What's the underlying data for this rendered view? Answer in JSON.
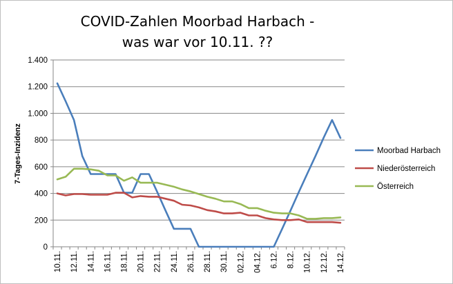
{
  "chart_data": {
    "type": "line",
    "title_lines": [
      "COVID-Zahlen Moorbad Harbach -",
      "was war vor 10.11. ??"
    ],
    "ylabel": "7-Tages-Inzidenz",
    "xlabel": "",
    "ylim": [
      0,
      1400
    ],
    "y_ticks": [
      {
        "value": 0,
        "label": "0"
      },
      {
        "value": 200,
        "label": "200"
      },
      {
        "value": 400,
        "label": "400"
      },
      {
        "value": 600,
        "label": "600"
      },
      {
        "value": 800,
        "label": "800"
      },
      {
        "value": 1000,
        "label": "1.000"
      },
      {
        "value": 1200,
        "label": "1.200"
      },
      {
        "value": 1400,
        "label": "1.400"
      }
    ],
    "x": [
      "10.11.",
      "11.11.",
      "12.11.",
      "13.11.",
      "14.11.",
      "15.11.",
      "16.11.",
      "17.11.",
      "18.11.",
      "19.11.",
      "20.11.",
      "21.11.",
      "22.11.",
      "23.11.",
      "24.11.",
      "25.11.",
      "26.11.",
      "27.11.",
      "28.11.",
      "29.11.",
      "30.11.",
      "01.12.",
      "02.12.",
      "03.12.",
      "04.12.",
      "05.12.",
      "6.12.",
      "7.12.",
      "8.12.",
      "9.12.",
      "10.12.",
      "11.12.",
      "12.12.",
      "13.12.",
      "14.12."
    ],
    "x_tick_labels": [
      "10.11.",
      "12.11.",
      "14.11.",
      "16.11.",
      "18.11.",
      "20.11.",
      "22.11.",
      "24.11.",
      "26.11.",
      "28.11.",
      "30.11.",
      "02.12.",
      "04.12.",
      "6.12.",
      "8.12.",
      "10.12.",
      "12.12.",
      "14.12."
    ],
    "grid": "horizontal",
    "legend_position": "right",
    "series": [
      {
        "name": "Moorbad Harbach",
        "color": "#4a7ebb",
        "values": [
          1225,
          1090,
          950,
          680,
          545,
          545,
          545,
          545,
          405,
          405,
          545,
          545,
          410,
          270,
          135,
          135,
          135,
          0,
          0,
          0,
          0,
          0,
          0,
          0,
          0,
          0,
          0,
          135,
          270,
          410,
          545,
          680,
          820,
          950,
          815
        ]
      },
      {
        "name": "Niederösterreich",
        "color": "#be4b48",
        "values": [
          400,
          385,
          395,
          395,
          390,
          390,
          390,
          405,
          405,
          370,
          380,
          375,
          375,
          360,
          345,
          315,
          310,
          295,
          275,
          265,
          250,
          250,
          255,
          235,
          235,
          215,
          205,
          200,
          200,
          205,
          185,
          185,
          185,
          185,
          180
        ]
      },
      {
        "name": "Österreich",
        "color": "#98b954",
        "values": [
          505,
          525,
          585,
          585,
          580,
          570,
          535,
          535,
          495,
          520,
          480,
          480,
          480,
          465,
          450,
          430,
          415,
          395,
          375,
          360,
          340,
          340,
          320,
          290,
          290,
          270,
          255,
          250,
          250,
          235,
          210,
          210,
          215,
          215,
          220
        ]
      }
    ]
  }
}
